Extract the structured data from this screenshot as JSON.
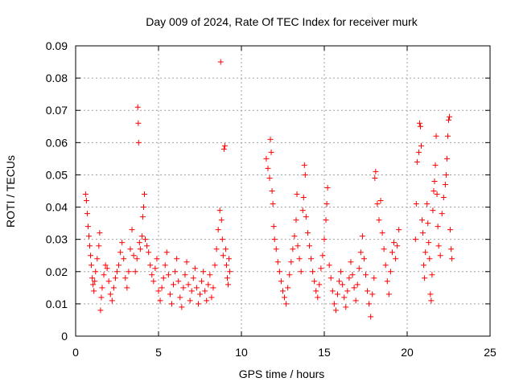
{
  "chart_data": {
    "type": "scatter",
    "title": "Day 009 of 2024, Rate Of TEC Index for receiver murk",
    "xlabel": "GPS time / hours",
    "ylabel": "ROTI / TECUs",
    "xlim": [
      0,
      25
    ],
    "ylim": [
      0,
      0.09
    ],
    "x_ticks": [
      0,
      5,
      10,
      15,
      20,
      25
    ],
    "y_ticks": [
      0,
      0.01,
      0.02,
      0.03,
      0.04,
      0.05,
      0.06,
      0.07,
      0.08,
      0.09
    ],
    "x_tick_labels": [
      "0",
      "5",
      "10",
      "15",
      "20",
      "25"
    ],
    "y_tick_labels": [
      "0",
      "0.01",
      "0.02",
      "0.03",
      "0.04",
      "0.05",
      "0.06",
      "0.07",
      "0.08",
      "0.09"
    ],
    "grid": true,
    "marker": "plus",
    "color": "#ff0000",
    "series": [
      {
        "points": [
          [
            0.6,
            0.044
          ],
          [
            0.65,
            0.042
          ],
          [
            0.7,
            0.038
          ],
          [
            0.75,
            0.034
          ],
          [
            0.8,
            0.031
          ],
          [
            0.85,
            0.028
          ],
          [
            0.9,
            0.025
          ],
          [
            0.95,
            0.022
          ],
          [
            1.0,
            0.018
          ],
          [
            1.05,
            0.016
          ],
          [
            1.1,
            0.014
          ],
          [
            1.15,
            0.017
          ],
          [
            1.2,
            0.02
          ],
          [
            1.3,
            0.024
          ],
          [
            1.4,
            0.028
          ],
          [
            1.45,
            0.032
          ],
          [
            1.5,
            0.008
          ],
          [
            1.55,
            0.012
          ],
          [
            1.6,
            0.015
          ],
          [
            1.7,
            0.019
          ],
          [
            1.8,
            0.022
          ],
          [
            1.9,
            0.021
          ],
          [
            2.0,
            0.017
          ],
          [
            2.1,
            0.013
          ],
          [
            2.2,
            0.011
          ],
          [
            2.3,
            0.015
          ],
          [
            2.4,
            0.018
          ],
          [
            2.5,
            0.02
          ],
          [
            2.6,
            0.022
          ],
          [
            2.7,
            0.026
          ],
          [
            2.8,
            0.029
          ],
          [
            2.9,
            0.024
          ],
          [
            3.0,
            0.018
          ],
          [
            3.1,
            0.015
          ],
          [
            3.2,
            0.02
          ],
          [
            3.3,
            0.027
          ],
          [
            3.4,
            0.033
          ],
          [
            3.5,
            0.025
          ],
          [
            3.6,
            0.02
          ],
          [
            3.7,
            0.024
          ],
          [
            3.75,
            0.071
          ],
          [
            3.78,
            0.066
          ],
          [
            3.8,
            0.06
          ],
          [
            3.85,
            0.029
          ],
          [
            3.9,
            0.027
          ],
          [
            4.0,
            0.031
          ],
          [
            4.05,
            0.037
          ],
          [
            4.1,
            0.04
          ],
          [
            4.15,
            0.044
          ],
          [
            4.2,
            0.03
          ],
          [
            4.3,
            0.028
          ],
          [
            4.4,
            0.026
          ],
          [
            4.5,
            0.022
          ],
          [
            4.6,
            0.019
          ],
          [
            4.7,
            0.017
          ],
          [
            4.8,
            0.021
          ],
          [
            4.9,
            0.024
          ],
          [
            5.0,
            0.014
          ],
          [
            5.1,
            0.011
          ],
          [
            5.2,
            0.015
          ],
          [
            5.3,
            0.018
          ],
          [
            5.4,
            0.022
          ],
          [
            5.5,
            0.026
          ],
          [
            5.6,
            0.019
          ],
          [
            5.7,
            0.013
          ],
          [
            5.8,
            0.01
          ],
          [
            5.9,
            0.016
          ],
          [
            6.0,
            0.02
          ],
          [
            6.1,
            0.024
          ],
          [
            6.2,
            0.017
          ],
          [
            6.3,
            0.012
          ],
          [
            6.4,
            0.009
          ],
          [
            6.5,
            0.015
          ],
          [
            6.6,
            0.019
          ],
          [
            6.7,
            0.023
          ],
          [
            6.8,
            0.016
          ],
          [
            6.9,
            0.011
          ],
          [
            7.0,
            0.014
          ],
          [
            7.1,
            0.018
          ],
          [
            7.2,
            0.021
          ],
          [
            7.3,
            0.015
          ],
          [
            7.4,
            0.01
          ],
          [
            7.5,
            0.013
          ],
          [
            7.6,
            0.017
          ],
          [
            7.7,
            0.02
          ],
          [
            7.8,
            0.014
          ],
          [
            7.9,
            0.011
          ],
          [
            8.0,
            0.016
          ],
          [
            8.1,
            0.019
          ],
          [
            8.2,
            0.012
          ],
          [
            8.3,
            0.015
          ],
          [
            8.4,
            0.022
          ],
          [
            8.5,
            0.027
          ],
          [
            8.6,
            0.033
          ],
          [
            8.7,
            0.039
          ],
          [
            8.75,
            0.085
          ],
          [
            8.8,
            0.036
          ],
          [
            8.85,
            0.03
          ],
          [
            8.9,
            0.025
          ],
          [
            8.95,
            0.058
          ],
          [
            9.0,
            0.059
          ],
          [
            9.05,
            0.027
          ],
          [
            9.1,
            0.022
          ],
          [
            9.15,
            0.018
          ],
          [
            9.2,
            0.016
          ],
          [
            9.25,
            0.024
          ],
          [
            9.3,
            0.02
          ],
          [
            11.5,
            0.055
          ],
          [
            11.6,
            0.052
          ],
          [
            11.7,
            0.049
          ],
          [
            11.75,
            0.061
          ],
          [
            11.8,
            0.057
          ],
          [
            11.85,
            0.045
          ],
          [
            11.9,
            0.041
          ],
          [
            11.95,
            0.034
          ],
          [
            12.0,
            0.03
          ],
          [
            12.1,
            0.027
          ],
          [
            12.2,
            0.023
          ],
          [
            12.3,
            0.02
          ],
          [
            12.4,
            0.017
          ],
          [
            12.5,
            0.014
          ],
          [
            12.6,
            0.012
          ],
          [
            12.7,
            0.01
          ],
          [
            12.8,
            0.015
          ],
          [
            12.9,
            0.019
          ],
          [
            13.0,
            0.023
          ],
          [
            13.1,
            0.027
          ],
          [
            13.2,
            0.031
          ],
          [
            13.3,
            0.036
          ],
          [
            13.35,
            0.044
          ],
          [
            13.4,
            0.028
          ],
          [
            13.5,
            0.024
          ],
          [
            13.6,
            0.02
          ],
          [
            13.7,
            0.039
          ],
          [
            13.75,
            0.043
          ],
          [
            13.8,
            0.053
          ],
          [
            13.85,
            0.05
          ],
          [
            13.9,
            0.037
          ],
          [
            14.0,
            0.032
          ],
          [
            14.1,
            0.028
          ],
          [
            14.2,
            0.024
          ],
          [
            14.3,
            0.02
          ],
          [
            14.4,
            0.017
          ],
          [
            14.5,
            0.014
          ],
          [
            14.6,
            0.012
          ],
          [
            14.7,
            0.016
          ],
          [
            14.8,
            0.021
          ],
          [
            14.9,
            0.025
          ],
          [
            15.0,
            0.03
          ],
          [
            15.1,
            0.036
          ],
          [
            15.15,
            0.041
          ],
          [
            15.2,
            0.046
          ],
          [
            15.3,
            0.022
          ],
          [
            15.4,
            0.018
          ],
          [
            15.5,
            0.014
          ],
          [
            15.6,
            0.01
          ],
          [
            15.7,
            0.008
          ],
          [
            15.8,
            0.013
          ],
          [
            15.9,
            0.017
          ],
          [
            16.0,
            0.02
          ],
          [
            16.1,
            0.016
          ],
          [
            16.2,
            0.012
          ],
          [
            16.3,
            0.009
          ],
          [
            16.4,
            0.014
          ],
          [
            16.5,
            0.018
          ],
          [
            16.6,
            0.023
          ],
          [
            16.7,
            0.019
          ],
          [
            16.8,
            0.015
          ],
          [
            16.9,
            0.011
          ],
          [
            17.0,
            0.016
          ],
          [
            17.1,
            0.021
          ],
          [
            17.2,
            0.026
          ],
          [
            17.3,
            0.031
          ],
          [
            17.4,
            0.024
          ],
          [
            17.5,
            0.019
          ],
          [
            17.6,
            0.014
          ],
          [
            17.7,
            0.01
          ],
          [
            17.8,
            0.006
          ],
          [
            17.9,
            0.013
          ],
          [
            18.0,
            0.018
          ],
          [
            18.05,
            0.049
          ],
          [
            18.1,
            0.051
          ],
          [
            18.2,
            0.041
          ],
          [
            18.3,
            0.036
          ],
          [
            18.4,
            0.042
          ],
          [
            18.5,
            0.032
          ],
          [
            18.6,
            0.027
          ],
          [
            18.7,
            0.022
          ],
          [
            18.8,
            0.017
          ],
          [
            18.9,
            0.013
          ],
          [
            19.0,
            0.02
          ],
          [
            19.1,
            0.026
          ],
          [
            19.2,
            0.029
          ],
          [
            19.3,
            0.024
          ],
          [
            19.4,
            0.028
          ],
          [
            19.5,
            0.033
          ],
          [
            20.5,
            0.03
          ],
          [
            20.55,
            0.041
          ],
          [
            20.6,
            0.054
          ],
          [
            20.7,
            0.057
          ],
          [
            20.75,
            0.066
          ],
          [
            20.8,
            0.065
          ],
          [
            20.85,
            0.059
          ],
          [
            20.9,
            0.036
          ],
          [
            20.95,
            0.032
          ],
          [
            21.0,
            0.022
          ],
          [
            21.05,
            0.018
          ],
          [
            21.1,
            0.026
          ],
          [
            21.2,
            0.041
          ],
          [
            21.25,
            0.035
          ],
          [
            21.3,
            0.029
          ],
          [
            21.35,
            0.024
          ],
          [
            21.4,
            0.013
          ],
          [
            21.45,
            0.011
          ],
          [
            21.5,
            0.019
          ],
          [
            21.55,
            0.039
          ],
          [
            21.6,
            0.045
          ],
          [
            21.65,
            0.048
          ],
          [
            21.7,
            0.053
          ],
          [
            21.75,
            0.062
          ],
          [
            21.8,
            0.044
          ],
          [
            21.85,
            0.034
          ],
          [
            21.9,
            0.028
          ],
          [
            22.0,
            0.025
          ],
          [
            22.1,
            0.038
          ],
          [
            22.2,
            0.043
          ],
          [
            22.3,
            0.047
          ],
          [
            22.35,
            0.05
          ],
          [
            22.4,
            0.055
          ],
          [
            22.45,
            0.062
          ],
          [
            22.5,
            0.067
          ],
          [
            22.55,
            0.068
          ],
          [
            22.6,
            0.033
          ],
          [
            22.65,
            0.027
          ],
          [
            22.7,
            0.024
          ]
        ]
      }
    ]
  }
}
